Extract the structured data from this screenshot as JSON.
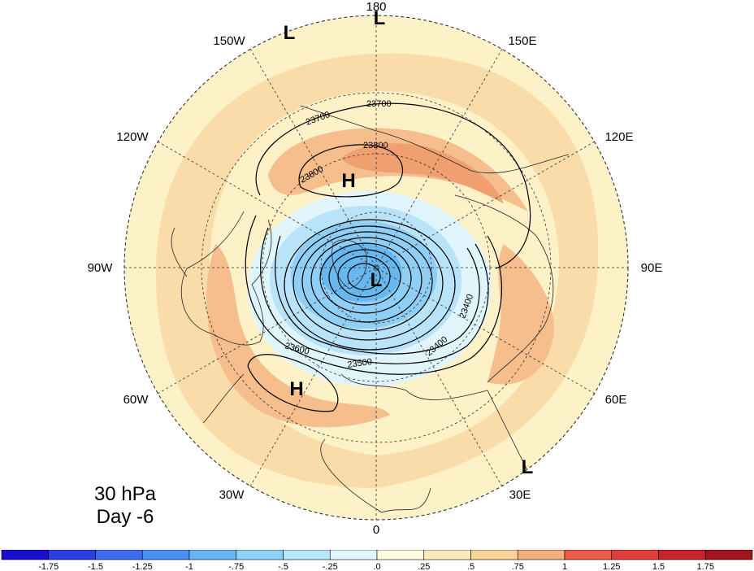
{
  "title": {
    "line1": "30 hPa",
    "line2": "Day -6"
  },
  "longitude_labels": {
    "n180": "180",
    "w150": "150W",
    "e150": "150E",
    "w120": "120W",
    "e120": "120E",
    "w90": "90W",
    "e90": "90E",
    "w60": "60W",
    "e60": "60E",
    "w30": "30W",
    "e30": "30E",
    "s0": "0"
  },
  "pressure_centers": [
    {
      "label": "L",
      "where": "near 180 top"
    },
    {
      "label": "L",
      "where": "150W edge"
    },
    {
      "label": "H",
      "where": "Bering / Alaska"
    },
    {
      "label": "L",
      "where": "polar vortex"
    },
    {
      "label": "H",
      "where": "North Atlantic"
    },
    {
      "label": "L",
      "where": "30E edge"
    }
  ],
  "contour_labels": [
    "23700",
    "23700",
    "23800",
    "23800",
    "23600",
    "23500",
    "23400",
    "23400"
  ],
  "colorbar": {
    "ticks": [
      "-1.75",
      "-1.5",
      "-1.25",
      "-1",
      "-.75",
      "-.5",
      "-.25",
      ".0",
      ".25",
      ".5",
      ".75",
      "1",
      "1.25",
      "1.5",
      "1.75"
    ],
    "colors": [
      "#1a0fcc",
      "#2b3fe0",
      "#3d6bf0",
      "#4a8ff5",
      "#6ab4f5",
      "#8fd0f7",
      "#b9e6fa",
      "#e3f6fc",
      "#fefbdf",
      "#fbeaba",
      "#f8d39a",
      "#f3b07c",
      "#ee5a4a",
      "#e23d3d",
      "#c9242c",
      "#a0141c"
    ]
  },
  "shading_colors": {
    "pale_yellow": "#fdf1c8",
    "light_orange": "#f9dcaa",
    "orange": "#f5be8c",
    "dark_orange": "#f0a070",
    "pale_blue": "#e0f4fc",
    "light_blue": "#b9e3f8",
    "mid_blue": "#8fcff5",
    "blue": "#66b8ef"
  }
}
